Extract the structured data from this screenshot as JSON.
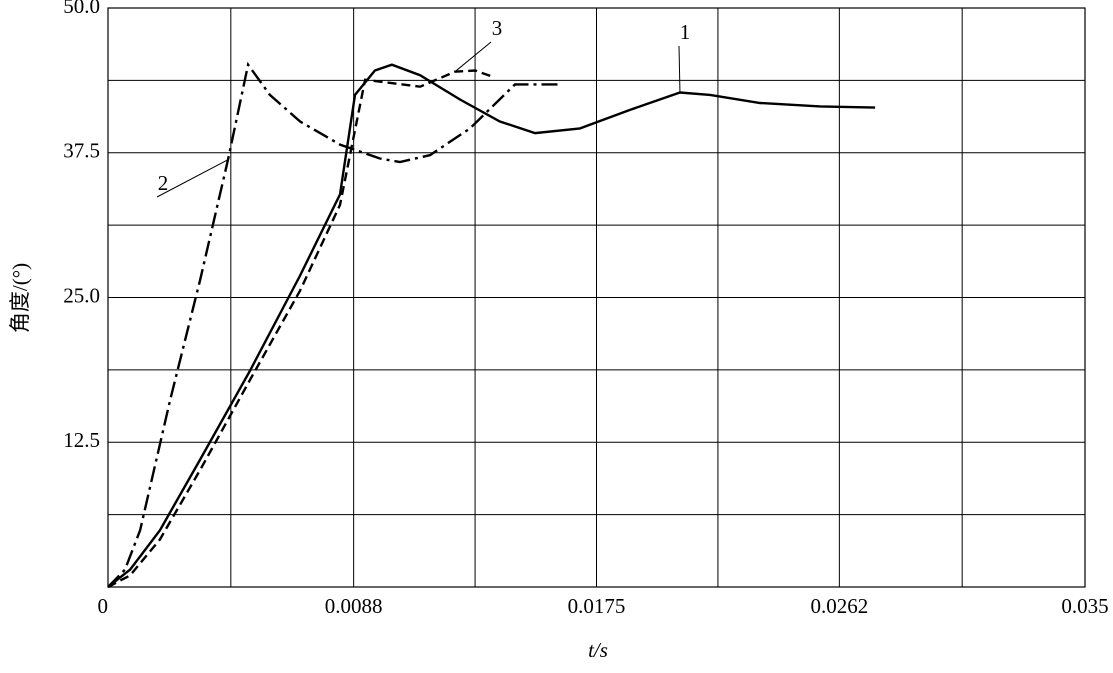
{
  "chart_data": {
    "type": "line",
    "xlabel": "t/s",
    "ylabel": "角度/(°)",
    "xlim": [
      0,
      0.035
    ],
    "ylim": [
      0,
      50
    ],
    "xticks": [
      0,
      0.0088,
      0.0175,
      0.0262,
      0.035
    ],
    "yticks": [
      12.5,
      {
        "value": 25,
        "label": "25.0"
      },
      37.5,
      {
        "value": 50,
        "label": "50.0"
      }
    ],
    "grid": true,
    "series": [
      {
        "name": "1",
        "color": "#000000",
        "dash": "solid",
        "x": [
          0,
          0.00079,
          0.00186,
          0.0033,
          0.00509,
          0.00688,
          0.00831,
          0.00885,
          0.00956,
          0.01017,
          0.01118,
          0.01261,
          0.01404,
          0.0153,
          0.01691,
          0.0187,
          0.02049,
          0.02157,
          0.02336,
          0.02551,
          0.02748
        ],
        "values": [
          0,
          1.5,
          4.9,
          11.0,
          18.7,
          26.9,
          33.9,
          42.5,
          44.6,
          45.1,
          44.2,
          42.1,
          40.2,
          39.2,
          39.6,
          41.2,
          42.7,
          42.5,
          41.8,
          41.5,
          41.4
        ]
      },
      {
        "name": "2",
        "color": "#000000",
        "dash": "dashdot",
        "x": [
          0,
          0.00061,
          0.00115,
          0.00222,
          0.0033,
          0.0043,
          0.00502,
          0.0058,
          0.00688,
          0.00831,
          0.00974,
          0.01046,
          0.01154,
          0.01297,
          0.01458,
          0.01612
        ],
        "values": [
          0,
          1.5,
          4.9,
          16.1,
          26.5,
          36.9,
          45.1,
          42.5,
          40.2,
          38.2,
          37.0,
          36.7,
          37.3,
          39.6,
          43.4,
          43.4
        ]
      },
      {
        "name": "3",
        "color": "#000000",
        "dash": "dashed",
        "x": [
          0,
          0.00079,
          0.00186,
          0.0033,
          0.00509,
          0.00688,
          0.00831,
          0.00921,
          0.01118,
          0.01243,
          0.01315,
          0.01386
        ],
        "values": [
          0,
          1.0,
          4.1,
          10.1,
          17.9,
          25.6,
          33.0,
          43.8,
          43.2,
          44.5,
          44.6,
          44.0
        ]
      }
    ]
  }
}
